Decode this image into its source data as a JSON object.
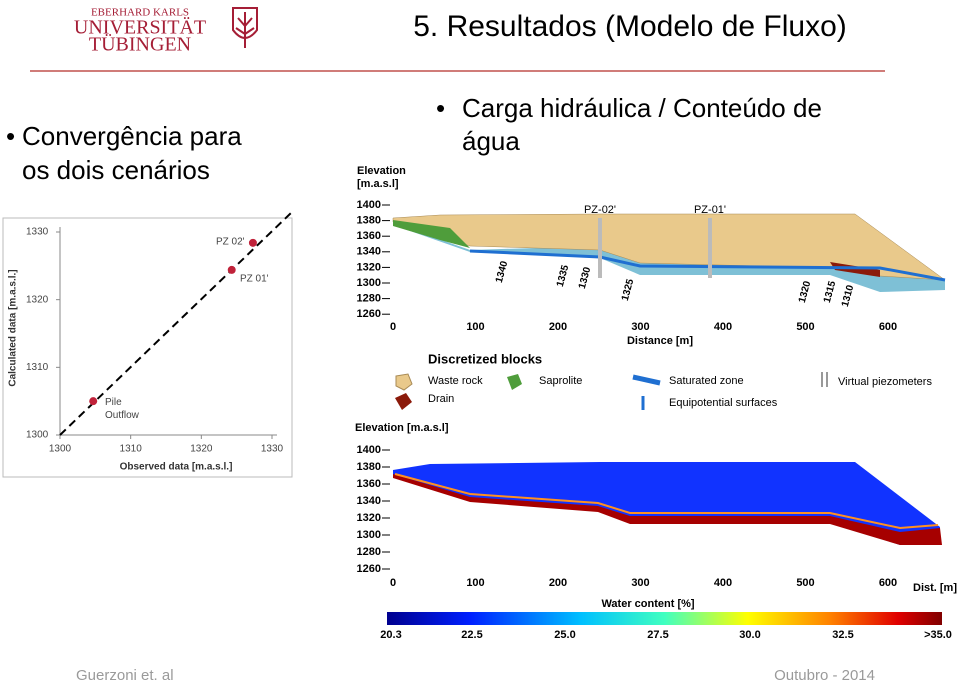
{
  "header": {
    "university": [
      "EBERHARD KARLS",
      "UNIVERSITÄT",
      "TÜBINGEN"
    ],
    "title": "5. Resultados (Modelo de Fluxo)"
  },
  "bullets": {
    "left": [
      "Convergência para",
      "os dois cenários"
    ],
    "right": [
      "Carga hidráulica / Conteúdo de",
      "água"
    ]
  },
  "chart_data": {
    "type": "scatter",
    "xlabel": "Observed data [m.a.s.l.]",
    "ylabel": "Calculated data [m.a.s.l.]",
    "x": [
      1304.7,
      1324.3,
      1327.3
    ],
    "values": [
      1305.0,
      1324.4,
      1328.4
    ],
    "color": "#c0223a",
    "point_labels": [
      "Pile Outflow",
      "PZ 01'",
      "PZ 02'"
    ],
    "xlim": [
      1300,
      1330
    ],
    "ylim": [
      1300,
      1330
    ],
    "xticks": [
      1300,
      1310,
      1320,
      1330
    ],
    "yticks": [
      1300,
      1310,
      1320,
      1330
    ]
  },
  "model_blocks": {
    "elevation_label": [
      "Elevation",
      "[m.a.s.l]"
    ],
    "elevation_ticks": [
      1400,
      1380,
      1360,
      1340,
      1320,
      1300,
      1280,
      1260
    ],
    "distance_ticks": [
      0,
      100,
      200,
      300,
      400,
      500,
      600
    ],
    "distance_label": "Distance [m]",
    "piezometers": [
      "PZ-02'",
      "PZ-01'"
    ],
    "contours": [
      "1340",
      "1335",
      "1330",
      "1325",
      "1320",
      "1315",
      "1310"
    ],
    "legend_title": "Discretized blocks",
    "legend": [
      "Waste rock",
      "Saprolite",
      "Saturated zone",
      "Virtual piezometers",
      "Drain",
      "Equipotential surfaces"
    ]
  },
  "model_water": {
    "elevation_label": "Elevation [m.a.s.l]",
    "elevation_ticks": [
      1400,
      1380,
      1360,
      1340,
      1320,
      1300,
      1280,
      1260
    ],
    "distance_ticks": [
      0,
      100,
      200,
      300,
      400,
      500,
      600
    ],
    "distance_label": "Dist. [m]",
    "colorbar_label": "Water content [%]",
    "colorbar_ticks": [
      "20.3",
      "22.5",
      "25.0",
      "27.5",
      "30.0",
      "32.5",
      ">35.0"
    ]
  },
  "footer": {
    "left": "Guerzoni et. al",
    "right": "Outubro - 2014"
  }
}
